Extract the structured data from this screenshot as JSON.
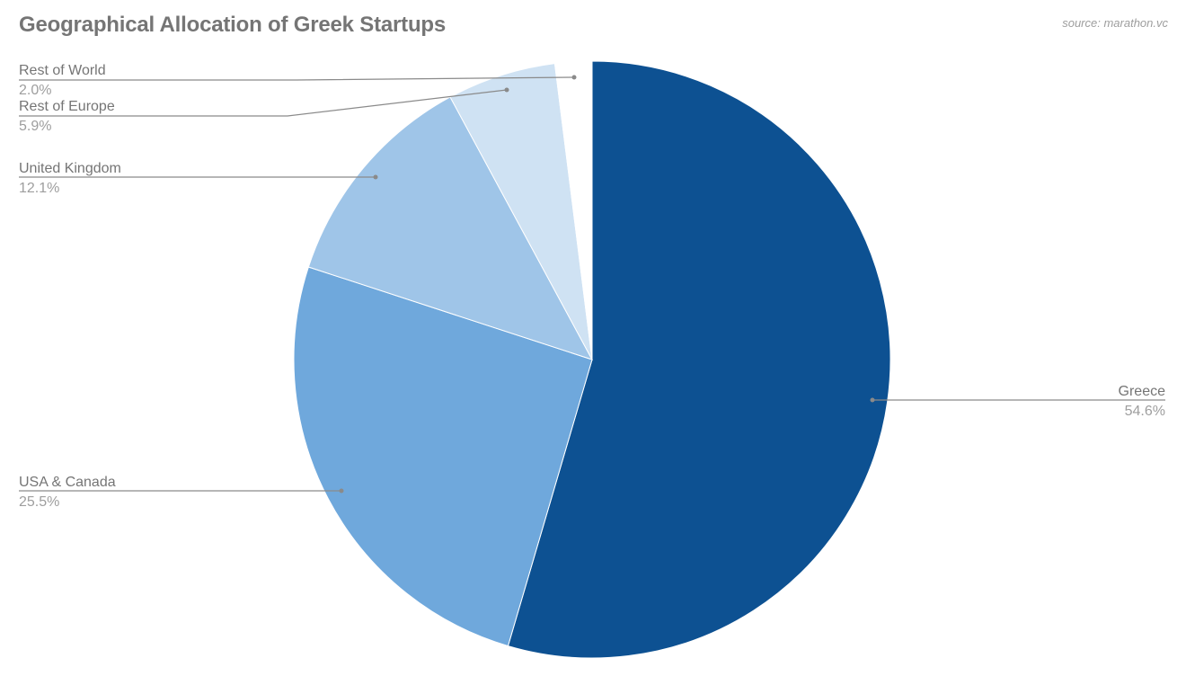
{
  "header": {
    "title": "Geographical Allocation of Greek Startups",
    "source": "source: marathon.vc"
  },
  "colors": {
    "title": "#757575",
    "label": "#757575",
    "value": "#9e9e9e",
    "leader": "#8a8a8a"
  },
  "chart_data": {
    "type": "pie",
    "title": "Geographical Allocation of Greek Startups",
    "subtitle": "source: marathon.vc",
    "start_angle_deg": 0,
    "direction": "clockwise",
    "legend_position": "labeled (leader lines)",
    "slices": [
      {
        "label": "Greece",
        "value": 54.6,
        "display": "54.6%",
        "color": "#0D5192"
      },
      {
        "label": "USA & Canada",
        "value": 25.5,
        "display": "25.5%",
        "color": "#6FA8DC"
      },
      {
        "label": "United Kingdom",
        "value": 12.1,
        "display": "12.1%",
        "color": "#9FC5E8"
      },
      {
        "label": "Rest of Europe",
        "value": 5.9,
        "display": "5.9%",
        "color": "#CFE2F3"
      },
      {
        "label": "Rest of World",
        "value": 2.0,
        "display": "2.0%",
        "color": "#FFFFFF"
      }
    ]
  },
  "labels": [
    {
      "name": "Rest of World",
      "value": "2.0%"
    },
    {
      "name": "Rest of Europe",
      "value": "5.9%"
    },
    {
      "name": "United Kingdom",
      "value": "12.1%"
    },
    {
      "name": "USA & Canada",
      "value": "25.5%"
    },
    {
      "name": "Greece",
      "value": "54.6%"
    }
  ]
}
